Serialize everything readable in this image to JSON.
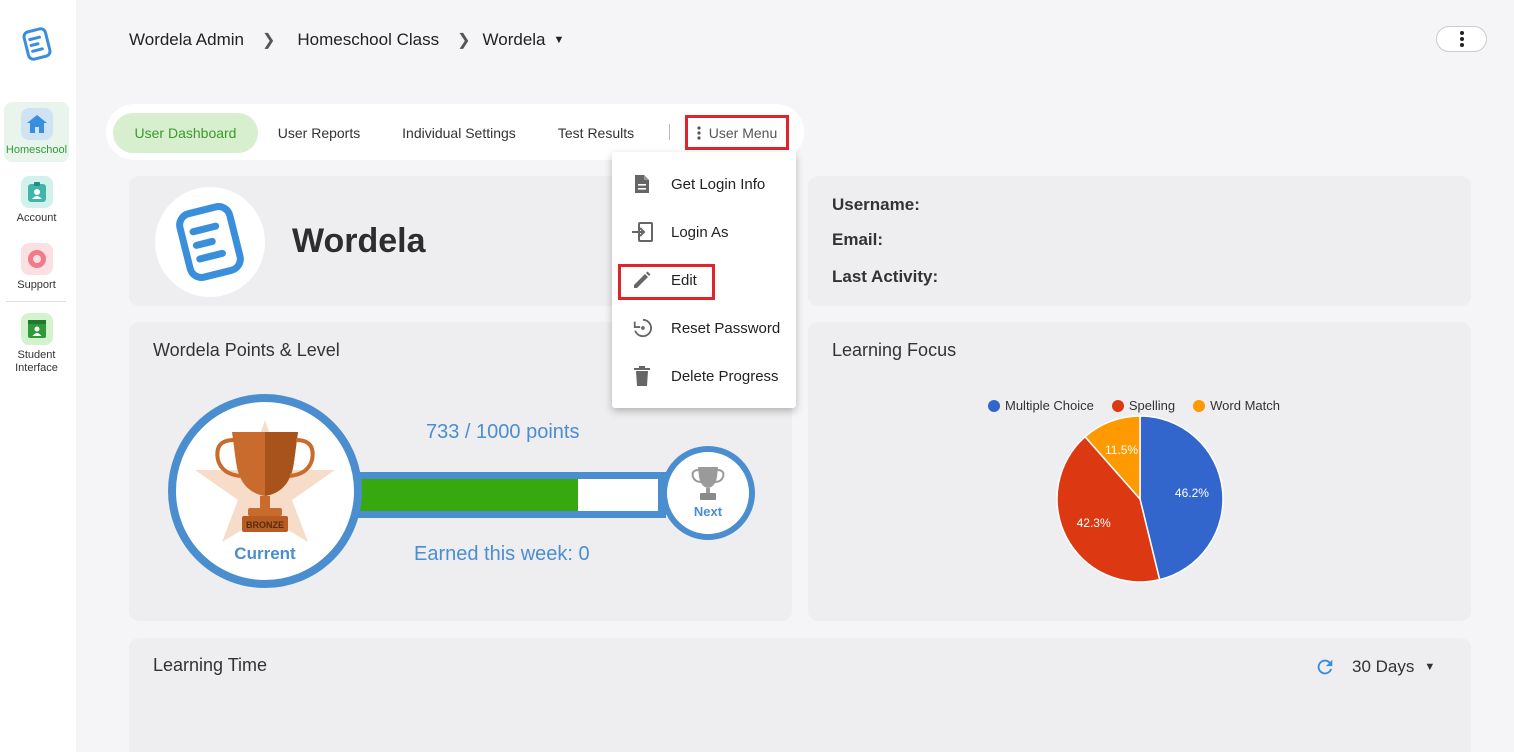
{
  "sidebar": {
    "items": [
      {
        "label": "Homeschool",
        "icon": "home-icon"
      },
      {
        "label": "Account",
        "icon": "account-icon"
      },
      {
        "label": "Support",
        "icon": "support-icon"
      },
      {
        "label": "Student Interface",
        "icon": "student-interface-icon"
      }
    ]
  },
  "breadcrumb": {
    "items": [
      "Wordela Admin",
      "Homeschool Class",
      "Wordela"
    ]
  },
  "tabs": {
    "items": [
      "User Dashboard",
      "User Reports",
      "Individual Settings",
      "Test Results"
    ],
    "user_menu": "User Menu",
    "active": "User Dashboard"
  },
  "dropdown": {
    "items": [
      "Get Login Info",
      "Login As",
      "Edit",
      "Reset Password",
      "Delete Progress"
    ]
  },
  "profile": {
    "name": "Wordela"
  },
  "info": {
    "username_label": "Username:",
    "email_label": "Email:",
    "last_activity_label": "Last Activity:"
  },
  "points": {
    "title": "Wordela Points & Level",
    "points_text": "733 / 1000 points",
    "current_points": 733,
    "max_points": 1000,
    "earned_text": "Earned this week: 0",
    "current_label": "Current",
    "next_label": "Next",
    "badge_text": "BRONZE"
  },
  "learning_focus": {
    "title": "Learning Focus"
  },
  "chart_data": {
    "type": "pie",
    "title": "Learning Focus",
    "categories": [
      "Multiple Choice",
      "Spelling",
      "Word Match"
    ],
    "values": [
      46.2,
      42.3,
      11.5
    ],
    "labels": [
      "46.2%",
      "42.3%",
      "11.5%"
    ],
    "colors": [
      "#3366cc",
      "#dc3912",
      "#ff9900"
    ],
    "legend": "top"
  },
  "learning_time": {
    "title": "Learning Time",
    "range": "30 Days"
  },
  "colors": {
    "accent_blue": "#4b8ed0",
    "green": "#37a80d",
    "highlight_red": "#e0242c"
  }
}
